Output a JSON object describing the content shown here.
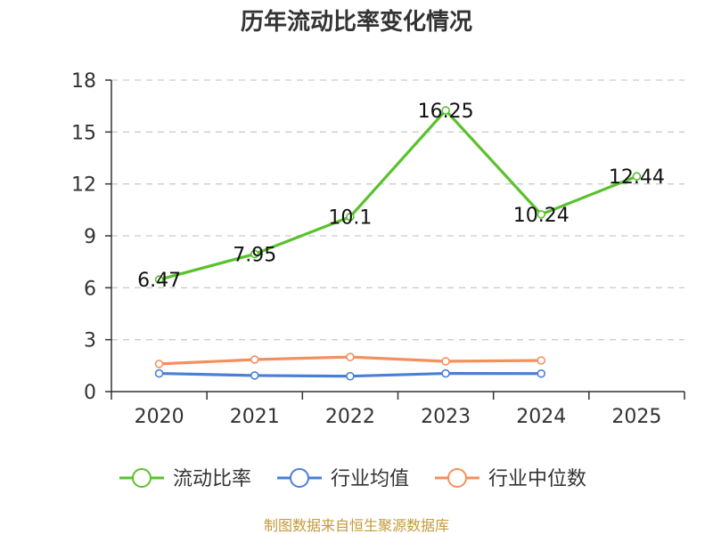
{
  "chart_data": {
    "type": "line",
    "title": "历年流动比率变化情况",
    "xlabel": "",
    "ylabel": "",
    "categories": [
      "2020",
      "2021",
      "2022",
      "2023",
      "2024",
      "2025"
    ],
    "ylim": [
      0,
      18
    ],
    "yticks": [
      0,
      3,
      6,
      9,
      12,
      15,
      18
    ],
    "grid": true,
    "legend_position": "bottom",
    "series": [
      {
        "name": "流动比率",
        "color": "#5ac12e",
        "values": [
          6.47,
          7.95,
          10.1,
          16.25,
          10.24,
          12.44
        ],
        "labels": [
          "6.47",
          "7.95",
          "10.1",
          "16.25",
          "10.24",
          "12.44"
        ]
      },
      {
        "name": "行业均值",
        "color": "#4a7fd6",
        "values": [
          1.05,
          0.93,
          0.89,
          1.05,
          1.04,
          null
        ]
      },
      {
        "name": "行业中位数",
        "color": "#f4905e",
        "values": [
          1.6,
          1.85,
          2.0,
          1.75,
          1.8,
          null
        ]
      }
    ]
  },
  "source": "制图数据来自恒生聚源数据库"
}
